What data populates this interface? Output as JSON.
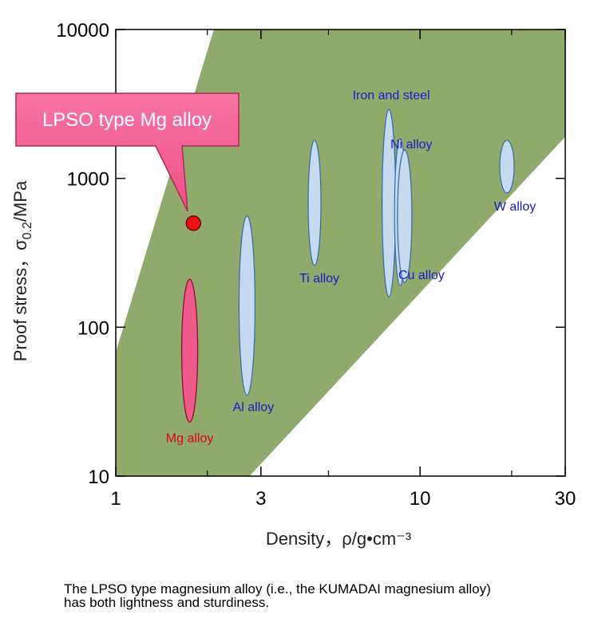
{
  "chart_data": {
    "type": "scatter",
    "xlabel": "Density，ρ/g•cm⁻³",
    "ylabel_main": "Proof stress，σ",
    "ylabel_sub": "0.2",
    "ylabel_tail": "/MPa",
    "x_scale": "log",
    "y_scale": "log",
    "xlim": [
      1,
      30
    ],
    "ylim": [
      10,
      10000
    ],
    "x_ticks": [
      {
        "value": 1,
        "label": "1"
      },
      {
        "value": 3,
        "label": "3"
      },
      {
        "value": 10,
        "label": "10"
      },
      {
        "value": 30,
        "label": "30"
      }
    ],
    "x_minor_ticks": [
      2,
      5,
      20
    ],
    "y_ticks": [
      {
        "value": 10,
        "label": "10"
      },
      {
        "value": 100,
        "label": "100"
      },
      {
        "value": 1000,
        "label": "1000"
      },
      {
        "value": 10000,
        "label": "10000"
      }
    ],
    "grid": false,
    "band": {
      "color": "#8faa6b",
      "upper": [
        [
          1,
          68
        ],
        [
          2.1,
          10000
        ],
        [
          30,
          10000
        ]
      ],
      "lower": [
        [
          30,
          1900
        ],
        [
          2.75,
          10
        ],
        [
          1,
          10
        ]
      ]
    },
    "regions": [
      {
        "label": "Mg alloy",
        "x": 1.75,
        "y_min": 23,
        "y_max": 210,
        "color": "#ef5a8a",
        "text_color": "#e0001b"
      },
      {
        "label": "Al alloy",
        "x": 2.7,
        "y_min": 35,
        "y_max": 560,
        "color": "#c5d9f1",
        "text_color": "#1a1acc"
      },
      {
        "label": "Ti alloy",
        "x": 4.5,
        "y_min": 260,
        "y_max": 1800,
        "color": "#c5d9f1",
        "text_color": "#1a1acc"
      },
      {
        "label": "Iron and steel",
        "x": 7.9,
        "y_min": 160,
        "y_max": 2900,
        "color": "#c5d9f1",
        "text_color": "#1a1acc"
      },
      {
        "label": "Ni alloy",
        "x": 8.6,
        "y_min": 190,
        "y_max": 1850,
        "color": "#c5d9f1",
        "text_color": "#1a1acc"
      },
      {
        "label": "Cu alloy",
        "x": 8.9,
        "y_min": 200,
        "y_max": 1550,
        "color": "#c5d9f1",
        "text_color": "#1a1acc"
      },
      {
        "label": "W alloy",
        "x": 19.3,
        "y_min": 800,
        "y_max": 1800,
        "color": "#c5d9f1",
        "text_color": "#1a1acc"
      }
    ],
    "point": {
      "label": "LPSO type Mg alloy",
      "x": 1.8,
      "y": 500,
      "color": "#ee1111"
    }
  },
  "caption_line1": "The LPSO type magnesium alloy (i.e., the KUMADAI magnesium alloy)",
  "caption_line2": "has both lightness and sturdiness."
}
